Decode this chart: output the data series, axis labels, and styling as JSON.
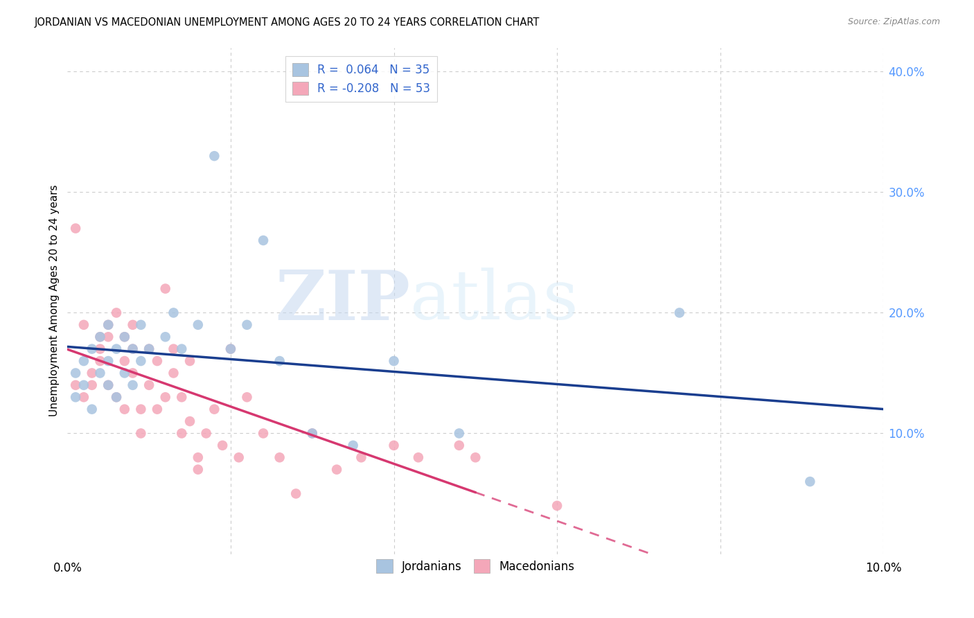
{
  "title": "JORDANIAN VS MACEDONIAN UNEMPLOYMENT AMONG AGES 20 TO 24 YEARS CORRELATION CHART",
  "source": "Source: ZipAtlas.com",
  "ylabel": "Unemployment Among Ages 20 to 24 years",
  "xlim": [
    0.0,
    0.1
  ],
  "ylim": [
    0.0,
    0.42
  ],
  "xticks": [
    0.0,
    0.02,
    0.04,
    0.06,
    0.08,
    0.1
  ],
  "xtick_labels": [
    "0.0%",
    "",
    "",
    "",
    "",
    "10.0%"
  ],
  "yticks_right": [
    0.1,
    0.2,
    0.3,
    0.4
  ],
  "ytick_labels_right": [
    "10.0%",
    "20.0%",
    "30.0%",
    "40.0%"
  ],
  "jordan_R": 0.064,
  "jordan_N": 35,
  "macedonian_R": -0.208,
  "macedonian_N": 53,
  "jordan_color": "#a8c4e0",
  "macedonian_color": "#f4a7b9",
  "jordan_line_color": "#1a3e8f",
  "macedonian_line_color": "#d63870",
  "watermark_zip": "ZIP",
  "watermark_atlas": "atlas",
  "background_color": "#ffffff",
  "grid_color": "#cccccc",
  "jordan_x": [
    0.001,
    0.001,
    0.002,
    0.002,
    0.003,
    0.003,
    0.004,
    0.004,
    0.005,
    0.005,
    0.005,
    0.006,
    0.006,
    0.007,
    0.007,
    0.008,
    0.008,
    0.009,
    0.009,
    0.01,
    0.012,
    0.013,
    0.014,
    0.016,
    0.018,
    0.02,
    0.022,
    0.024,
    0.026,
    0.03,
    0.035,
    0.04,
    0.048,
    0.075,
    0.091
  ],
  "jordan_y": [
    0.13,
    0.15,
    0.14,
    0.16,
    0.12,
    0.17,
    0.15,
    0.18,
    0.14,
    0.16,
    0.19,
    0.13,
    0.17,
    0.15,
    0.18,
    0.14,
    0.17,
    0.16,
    0.19,
    0.17,
    0.18,
    0.2,
    0.17,
    0.19,
    0.33,
    0.17,
    0.19,
    0.26,
    0.16,
    0.1,
    0.09,
    0.16,
    0.1,
    0.2,
    0.06
  ],
  "macedonian_x": [
    0.001,
    0.001,
    0.002,
    0.002,
    0.003,
    0.003,
    0.004,
    0.004,
    0.004,
    0.005,
    0.005,
    0.005,
    0.006,
    0.006,
    0.007,
    0.007,
    0.007,
    0.008,
    0.008,
    0.008,
    0.009,
    0.009,
    0.01,
    0.01,
    0.011,
    0.011,
    0.012,
    0.012,
    0.013,
    0.013,
    0.014,
    0.014,
    0.015,
    0.015,
    0.016,
    0.016,
    0.017,
    0.018,
    0.019,
    0.02,
    0.021,
    0.022,
    0.024,
    0.026,
    0.028,
    0.03,
    0.033,
    0.036,
    0.04,
    0.043,
    0.048,
    0.05,
    0.06
  ],
  "macedonian_y": [
    0.27,
    0.14,
    0.19,
    0.13,
    0.15,
    0.14,
    0.18,
    0.17,
    0.16,
    0.19,
    0.18,
    0.14,
    0.2,
    0.13,
    0.18,
    0.16,
    0.12,
    0.19,
    0.17,
    0.15,
    0.12,
    0.1,
    0.17,
    0.14,
    0.16,
    0.12,
    0.22,
    0.13,
    0.17,
    0.15,
    0.13,
    0.1,
    0.16,
    0.11,
    0.08,
    0.07,
    0.1,
    0.12,
    0.09,
    0.17,
    0.08,
    0.13,
    0.1,
    0.08,
    0.05,
    0.1,
    0.07,
    0.08,
    0.09,
    0.08,
    0.09,
    0.08,
    0.04
  ]
}
